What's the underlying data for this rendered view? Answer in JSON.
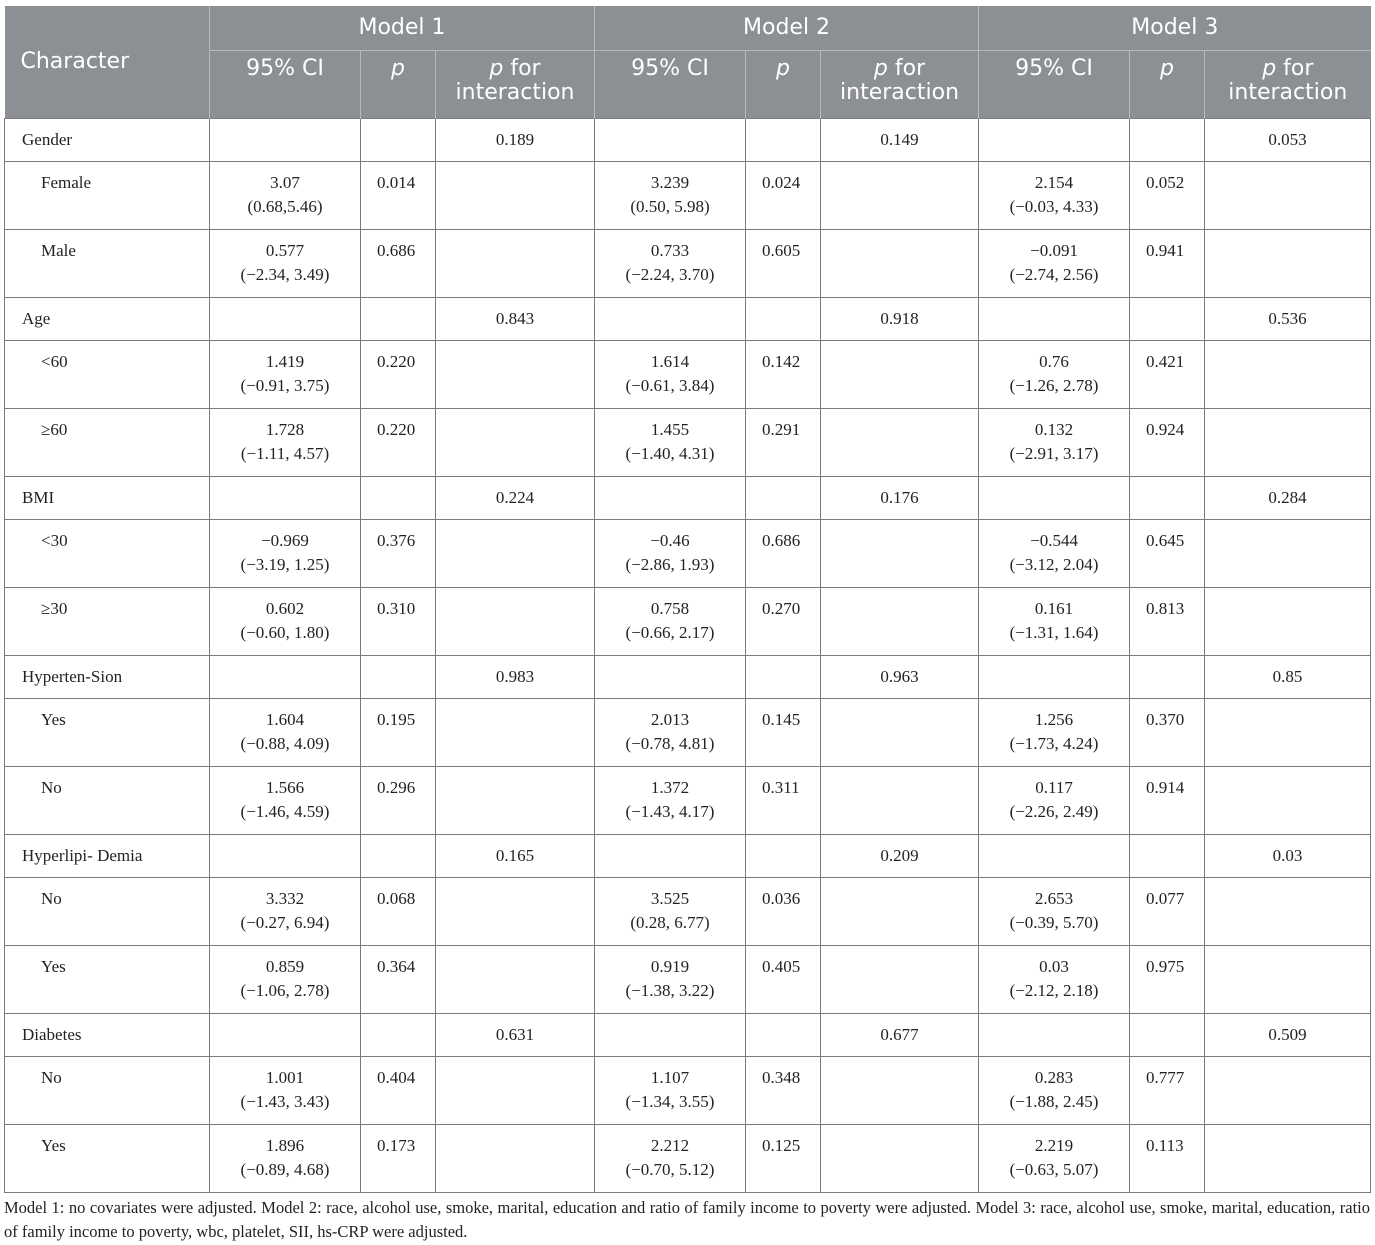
{
  "header": {
    "character": "Character",
    "models": [
      "Model 1",
      "Model 2",
      "Model 3"
    ],
    "ci": "95% CI",
    "p": "p",
    "p_for_italic": "p",
    "p_for_rest": " for",
    "interaction": "interaction"
  },
  "rows": [
    {
      "kind": "cat",
      "name": "Gender",
      "m": [
        {
          "ci": "",
          "ci2": "",
          "p": "",
          "pi": "0.189"
        },
        {
          "ci": "",
          "ci2": "",
          "p": "",
          "pi": "0.149"
        },
        {
          "ci": "",
          "ci2": "",
          "p": "",
          "pi": "0.053"
        }
      ]
    },
    {
      "kind": "sub",
      "name": "Female",
      "m": [
        {
          "ci": "3.07",
          "ci2": "(0.68,5.46)",
          "p": "0.014",
          "pi": ""
        },
        {
          "ci": "3.239",
          "ci2": "(0.50, 5.98)",
          "p": "0.024",
          "pi": ""
        },
        {
          "ci": "2.154",
          "ci2": "(−0.03, 4.33)",
          "p": "0.052",
          "pi": ""
        }
      ]
    },
    {
      "kind": "sub",
      "name": "Male",
      "m": [
        {
          "ci": "0.577",
          "ci2": "(−2.34, 3.49)",
          "p": "0.686",
          "pi": ""
        },
        {
          "ci": "0.733",
          "ci2": "(−2.24, 3.70)",
          "p": "0.605",
          "pi": ""
        },
        {
          "ci": "−0.091",
          "ci2": "(−2.74, 2.56)",
          "p": "0.941",
          "pi": ""
        }
      ]
    },
    {
      "kind": "cat",
      "name": "Age",
      "m": [
        {
          "ci": "",
          "ci2": "",
          "p": "",
          "pi": "0.843"
        },
        {
          "ci": "",
          "ci2": "",
          "p": "",
          "pi": "0.918"
        },
        {
          "ci": "",
          "ci2": "",
          "p": "",
          "pi": "0.536"
        }
      ]
    },
    {
      "kind": "sub",
      "name": "<60",
      "m": [
        {
          "ci": "1.419",
          "ci2": "(−0.91, 3.75)",
          "p": "0.220",
          "pi": ""
        },
        {
          "ci": "1.614",
          "ci2": "(−0.61, 3.84)",
          "p": "0.142",
          "pi": ""
        },
        {
          "ci": "0.76",
          "ci2": "(−1.26, 2.78)",
          "p": "0.421",
          "pi": ""
        }
      ]
    },
    {
      "kind": "sub",
      "name": "≥60",
      "m": [
        {
          "ci": "1.728",
          "ci2": "(−1.11, 4.57)",
          "p": "0.220",
          "pi": ""
        },
        {
          "ci": "1.455",
          "ci2": "(−1.40, 4.31)",
          "p": "0.291",
          "pi": ""
        },
        {
          "ci": "0.132",
          "ci2": "(−2.91, 3.17)",
          "p": "0.924",
          "pi": ""
        }
      ]
    },
    {
      "kind": "cat",
      "name": "BMI",
      "m": [
        {
          "ci": "",
          "ci2": "",
          "p": "",
          "pi": "0.224"
        },
        {
          "ci": "",
          "ci2": "",
          "p": "",
          "pi": "0.176"
        },
        {
          "ci": "",
          "ci2": "",
          "p": "",
          "pi": "0.284"
        }
      ]
    },
    {
      "kind": "sub",
      "name": "<30",
      "m": [
        {
          "ci": "−0.969",
          "ci2": "(−3.19, 1.25)",
          "p": "0.376",
          "pi": ""
        },
        {
          "ci": "−0.46",
          "ci2": "(−2.86, 1.93)",
          "p": "0.686",
          "pi": ""
        },
        {
          "ci": "−0.544",
          "ci2": "(−3.12, 2.04)",
          "p": "0.645",
          "pi": ""
        }
      ]
    },
    {
      "kind": "sub",
      "name": "≥30",
      "m": [
        {
          "ci": "0.602",
          "ci2": "(−0.60, 1.80)",
          "p": "0.310",
          "pi": ""
        },
        {
          "ci": "0.758",
          "ci2": "(−0.66, 2.17)",
          "p": "0.270",
          "pi": ""
        },
        {
          "ci": "0.161",
          "ci2": "(−1.31, 1.64)",
          "p": "0.813",
          "pi": ""
        }
      ]
    },
    {
      "kind": "cat",
      "name": "Hyperten-Sion",
      "m": [
        {
          "ci": "",
          "ci2": "",
          "p": "",
          "pi": "0.983"
        },
        {
          "ci": "",
          "ci2": "",
          "p": "",
          "pi": "0.963"
        },
        {
          "ci": "",
          "ci2": "",
          "p": "",
          "pi": "0.85"
        }
      ]
    },
    {
      "kind": "sub",
      "name": "Yes",
      "m": [
        {
          "ci": "1.604",
          "ci2": "(−0.88, 4.09)",
          "p": "0.195",
          "pi": ""
        },
        {
          "ci": "2.013",
          "ci2": "(−0.78, 4.81)",
          "p": "0.145",
          "pi": ""
        },
        {
          "ci": "1.256",
          "ci2": "(−1.73, 4.24)",
          "p": "0.370",
          "pi": ""
        }
      ]
    },
    {
      "kind": "sub",
      "name": "No",
      "m": [
        {
          "ci": "1.566",
          "ci2": "(−1.46, 4.59)",
          "p": "0.296",
          "pi": ""
        },
        {
          "ci": "1.372",
          "ci2": "(−1.43, 4.17)",
          "p": "0.311",
          "pi": ""
        },
        {
          "ci": "0.117",
          "ci2": "(−2.26, 2.49)",
          "p": "0.914",
          "pi": ""
        }
      ]
    },
    {
      "kind": "cat",
      "name": "Hyperlipi- Demia",
      "m": [
        {
          "ci": "",
          "ci2": "",
          "p": "",
          "pi": "0.165"
        },
        {
          "ci": "",
          "ci2": "",
          "p": "",
          "pi": "0.209"
        },
        {
          "ci": "",
          "ci2": "",
          "p": "",
          "pi": "0.03"
        }
      ]
    },
    {
      "kind": "sub",
      "name": "No",
      "m": [
        {
          "ci": "3.332",
          "ci2": "(−0.27, 6.94)",
          "p": "0.068",
          "pi": ""
        },
        {
          "ci": "3.525",
          "ci2": "(0.28, 6.77)",
          "p": "0.036",
          "pi": ""
        },
        {
          "ci": "2.653",
          "ci2": "(−0.39, 5.70)",
          "p": "0.077",
          "pi": ""
        }
      ]
    },
    {
      "kind": "sub",
      "name": "Yes",
      "m": [
        {
          "ci": "0.859",
          "ci2": "(−1.06, 2.78)",
          "p": "0.364",
          "pi": ""
        },
        {
          "ci": "0.919",
          "ci2": "(−1.38, 3.22)",
          "p": "0.405",
          "pi": ""
        },
        {
          "ci": "0.03",
          "ci2": "(−2.12, 2.18)",
          "p": "0.975",
          "pi": ""
        }
      ]
    },
    {
      "kind": "cat",
      "name": "Diabetes",
      "m": [
        {
          "ci": "",
          "ci2": "",
          "p": "",
          "pi": "0.631"
        },
        {
          "ci": "",
          "ci2": "",
          "p": "",
          "pi": "0.677"
        },
        {
          "ci": "",
          "ci2": "",
          "p": "",
          "pi": "0.509"
        }
      ]
    },
    {
      "kind": "sub",
      "name": "No",
      "m": [
        {
          "ci": "1.001",
          "ci2": "(−1.43, 3.43)",
          "p": "0.404",
          "pi": ""
        },
        {
          "ci": "1.107",
          "ci2": "(−1.34, 3.55)",
          "p": "0.348",
          "pi": ""
        },
        {
          "ci": "0.283",
          "ci2": "(−1.88, 2.45)",
          "p": "0.777",
          "pi": ""
        }
      ]
    },
    {
      "kind": "sub",
      "name": "Yes",
      "m": [
        {
          "ci": "1.896",
          "ci2": "(−0.89, 4.68)",
          "p": "0.173",
          "pi": ""
        },
        {
          "ci": "2.212",
          "ci2": "(−0.70, 5.12)",
          "p": "0.125",
          "pi": ""
        },
        {
          "ci": "2.219",
          "ci2": "(−0.63, 5.07)",
          "p": "0.113",
          "pi": ""
        }
      ]
    }
  ],
  "footnote": "Model 1: no covariates were adjusted. Model 2: race, alcohol use, smoke, marital, education and ratio of family income to poverty were adjusted. Model 3: race, alcohol use, smoke, marital, education, ratio of family income to poverty, wbc, platelet, SII, hs-CRP were adjusted."
}
